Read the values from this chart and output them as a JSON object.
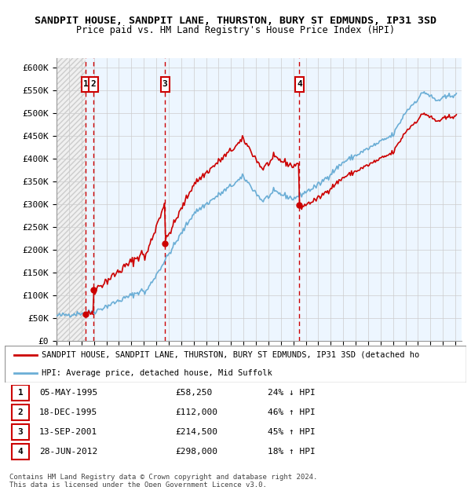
{
  "title1": "SANDPIT HOUSE, SANDPIT LANE, THURSTON, BURY ST EDMUNDS, IP31 3SD",
  "title2": "Price paid vs. HM Land Registry's House Price Index (HPI)",
  "ylim": [
    0,
    620000
  ],
  "yticks": [
    0,
    50000,
    100000,
    150000,
    200000,
    250000,
    300000,
    350000,
    400000,
    450000,
    500000,
    550000,
    600000
  ],
  "ytick_labels": [
    "£0",
    "£50K",
    "£100K",
    "£150K",
    "£200K",
    "£250K",
    "£300K",
    "£350K",
    "£400K",
    "£450K",
    "£500K",
    "£550K",
    "£600K"
  ],
  "xlim_start": 1993.0,
  "xlim_end": 2025.5,
  "purchases": [
    {
      "num": 1,
      "date": "05-MAY-1995",
      "year": 1995.35,
      "price": 58250,
      "pct": "24%",
      "dir": "↓"
    },
    {
      "num": 2,
      "date": "18-DEC-1995",
      "year": 1995.96,
      "price": 112000,
      "pct": "46%",
      "dir": "↑"
    },
    {
      "num": 3,
      "date": "13-SEP-2001",
      "year": 2001.7,
      "price": 214500,
      "pct": "45%",
      "dir": "↑"
    },
    {
      "num": 4,
      "date": "28-JUN-2012",
      "year": 2012.49,
      "price": 298000,
      "pct": "18%",
      "dir": "↑"
    }
  ],
  "legend_entries": [
    "SANDPIT HOUSE, SANDPIT LANE, THURSTON, BURY ST EDMUNDS, IP31 3SD (detached ho",
    "HPI: Average price, detached house, Mid Suffolk"
  ],
  "table_rows": [
    [
      "1",
      "05-MAY-1995",
      "£58,250",
      "24% ↓ HPI"
    ],
    [
      "2",
      "18-DEC-1995",
      "£112,000",
      "46% ↑ HPI"
    ],
    [
      "3",
      "13-SEP-2001",
      "£214,500",
      "45% ↑ HPI"
    ],
    [
      "4",
      "28-JUN-2012",
      "£298,000",
      "18% ↑ HPI"
    ]
  ],
  "footer1": "Contains HM Land Registry data © Crown copyright and database right 2024.",
  "footer2": "This data is licensed under the Open Government Licence v3.0.",
  "hpi_color": "#6baed6",
  "price_color": "#cc0000"
}
